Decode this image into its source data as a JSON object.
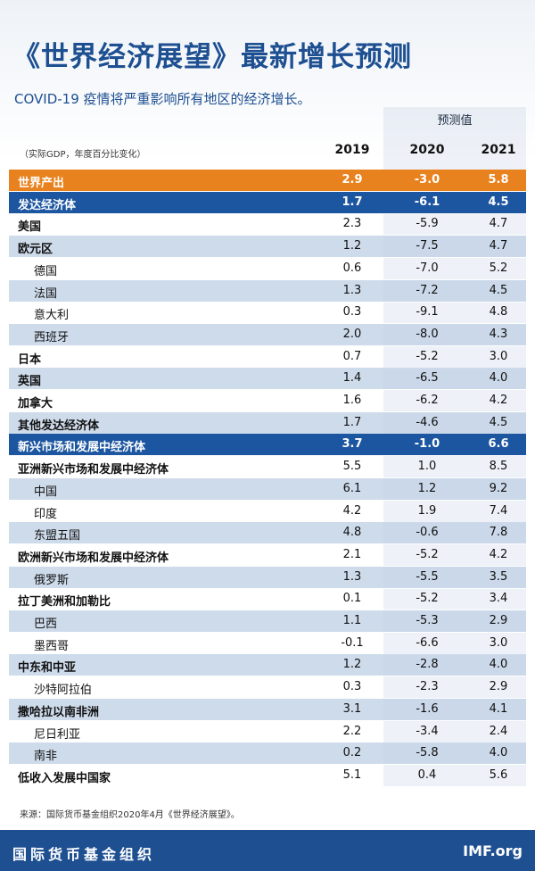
{
  "header": {
    "title": "《世界经济展望》最新增长预测",
    "subtitle": "COVID-19 疫情将严重影响所有地区的经济增长。"
  },
  "table": {
    "forecast_label": "预测值",
    "unit_note": "（实际GDP，年度百分比变化）",
    "columns": [
      "2019",
      "2020",
      "2021"
    ],
    "rows": [
      {
        "name": "世界产出",
        "values": [
          "2.9",
          "-3.0",
          "5.8"
        ],
        "fill": "#e8821e"
      },
      {
        "name": "发达经济体",
        "values": [
          "1.7",
          "-6.1",
          "4.5"
        ],
        "fill": "#1d56a0"
      },
      {
        "name": "美国",
        "values": [
          "2.3",
          "-5.9",
          "4.7"
        ]
      },
      {
        "name": "欧元区",
        "values": [
          "1.2",
          "-7.5",
          "4.7"
        ]
      },
      {
        "name": "德国",
        "values": [
          "0.6",
          "-7.0",
          "5.2"
        ],
        "indent": true
      },
      {
        "name": "法国",
        "values": [
          "1.3",
          "-7.2",
          "4.5"
        ],
        "indent": true
      },
      {
        "name": "意大利",
        "values": [
          "0.3",
          "-9.1",
          "4.8"
        ],
        "indent": true
      },
      {
        "name": "西班牙",
        "values": [
          "2.0",
          "-8.0",
          "4.3"
        ],
        "indent": true
      },
      {
        "name": "日本",
        "values": [
          "0.7",
          "-5.2",
          "3.0"
        ]
      },
      {
        "name": "英国",
        "values": [
          "1.4",
          "-6.5",
          "4.0"
        ]
      },
      {
        "name": "加拿大",
        "values": [
          "1.6",
          "-6.2",
          "4.2"
        ]
      },
      {
        "name": "其他发达经济体",
        "values": [
          "1.7",
          "-4.6",
          "4.5"
        ]
      },
      {
        "name": "新兴市场和发展中经济体",
        "values": [
          "3.7",
          "-1.0",
          "6.6"
        ],
        "fill": "#1d56a0"
      },
      {
        "name": "亚洲新兴市场和发展中经济体",
        "values": [
          "5.5",
          "1.0",
          "8.5"
        ]
      },
      {
        "name": "中国",
        "values": [
          "6.1",
          "1.2",
          "9.2"
        ],
        "indent": true
      },
      {
        "name": "印度",
        "values": [
          "4.2",
          "1.9",
          "7.4"
        ],
        "indent": true
      },
      {
        "name": "东盟五国",
        "values": [
          "4.8",
          "-0.6",
          "7.8"
        ],
        "indent": true
      },
      {
        "name": "欧洲新兴市场和发展中经济体",
        "values": [
          "2.1",
          "-5.2",
          "4.2"
        ]
      },
      {
        "name": "俄罗斯",
        "values": [
          "1.3",
          "-5.5",
          "3.5"
        ],
        "indent": true
      },
      {
        "name": "拉丁美洲和加勒比",
        "values": [
          "0.1",
          "-5.2",
          "3.4"
        ]
      },
      {
        "name": "巴西",
        "values": [
          "1.1",
          "-5.3",
          "2.9"
        ],
        "indent": true
      },
      {
        "name": "墨西哥",
        "values": [
          "-0.1",
          "-6.6",
          "3.0"
        ],
        "indent": true
      },
      {
        "name": "中东和中亚",
        "values": [
          "1.2",
          "-2.8",
          "4.0"
        ]
      },
      {
        "name": "沙特阿拉伯",
        "values": [
          "0.3",
          "-2.3",
          "2.9"
        ],
        "indent": true
      },
      {
        "name": "撒哈拉以南非洲",
        "values": [
          "3.1",
          "-1.6",
          "4.1"
        ]
      },
      {
        "name": "尼日利亚",
        "values": [
          "2.2",
          "-3.4",
          "2.4"
        ],
        "indent": true
      },
      {
        "name": "南非",
        "values": [
          "0.2",
          "-5.8",
          "4.0"
        ],
        "indent": true
      },
      {
        "name": "低收入发展中国家",
        "values": [
          "5.1",
          "0.4",
          "5.6"
        ]
      }
    ]
  },
  "footer": {
    "source": "来源：国际货币基金组织2020年4月《世界经济展望》。",
    "organization": "国际货币基金组织",
    "website": "IMF.org"
  }
}
